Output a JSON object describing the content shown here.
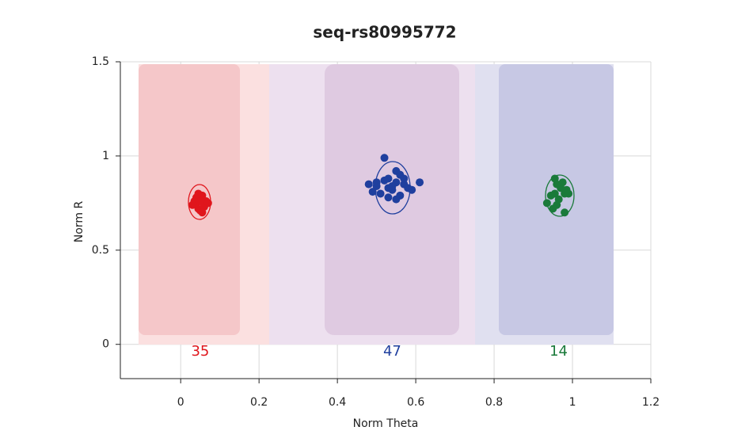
{
  "chart_data": {
    "type": "scatter",
    "title": "seq-rs80995772",
    "xlabel": "Norm Theta",
    "ylabel": "Norm R",
    "xlim": [
      -0.154,
      1.2
    ],
    "ylim": [
      -0.182,
      1.5
    ],
    "xticks": [
      0,
      0.2,
      0.4,
      0.6,
      0.8,
      1,
      1.2
    ],
    "yticks": [
      0,
      0.5,
      1,
      1.5
    ],
    "grid": true,
    "series": [
      {
        "color": "#e0161c",
        "count": 35,
        "x": [
          0.04,
          0.05,
          0.06,
          0.045,
          0.055,
          0.035,
          0.065,
          0.05,
          0.04,
          0.06,
          0.07,
          0.045,
          0.055,
          0.03,
          0.05
        ],
        "values": [
          0.75,
          0.77,
          0.74,
          0.72,
          0.79,
          0.76,
          0.76,
          0.71,
          0.78,
          0.73,
          0.75,
          0.8,
          0.7,
          0.74,
          0.76
        ]
      },
      {
        "color": "#1f3f9e",
        "count": 47,
        "x": [
          0.52,
          0.48,
          0.49,
          0.61,
          0.5,
          0.53,
          0.55,
          0.56,
          0.54,
          0.57,
          0.58,
          0.51,
          0.55,
          0.53,
          0.56,
          0.54,
          0.52,
          0.57,
          0.5,
          0.59,
          0.55,
          0.53
        ],
        "values": [
          0.99,
          0.85,
          0.81,
          0.86,
          0.84,
          0.88,
          0.92,
          0.9,
          0.82,
          0.85,
          0.83,
          0.8,
          0.86,
          0.78,
          0.79,
          0.84,
          0.87,
          0.88,
          0.86,
          0.82,
          0.77,
          0.83
        ]
      },
      {
        "color": "#1a7a3a",
        "count": 14,
        "x": [
          0.935,
          0.955,
          0.975,
          0.98,
          0.99,
          0.96,
          0.95,
          0.98,
          0.955,
          0.97,
          0.945,
          0.965,
          0.985,
          0.96
        ],
        "values": [
          0.75,
          0.88,
          0.86,
          0.8,
          0.8,
          0.74,
          0.72,
          0.7,
          0.8,
          0.83,
          0.79,
          0.77,
          0.82,
          0.85
        ]
      }
    ]
  }
}
